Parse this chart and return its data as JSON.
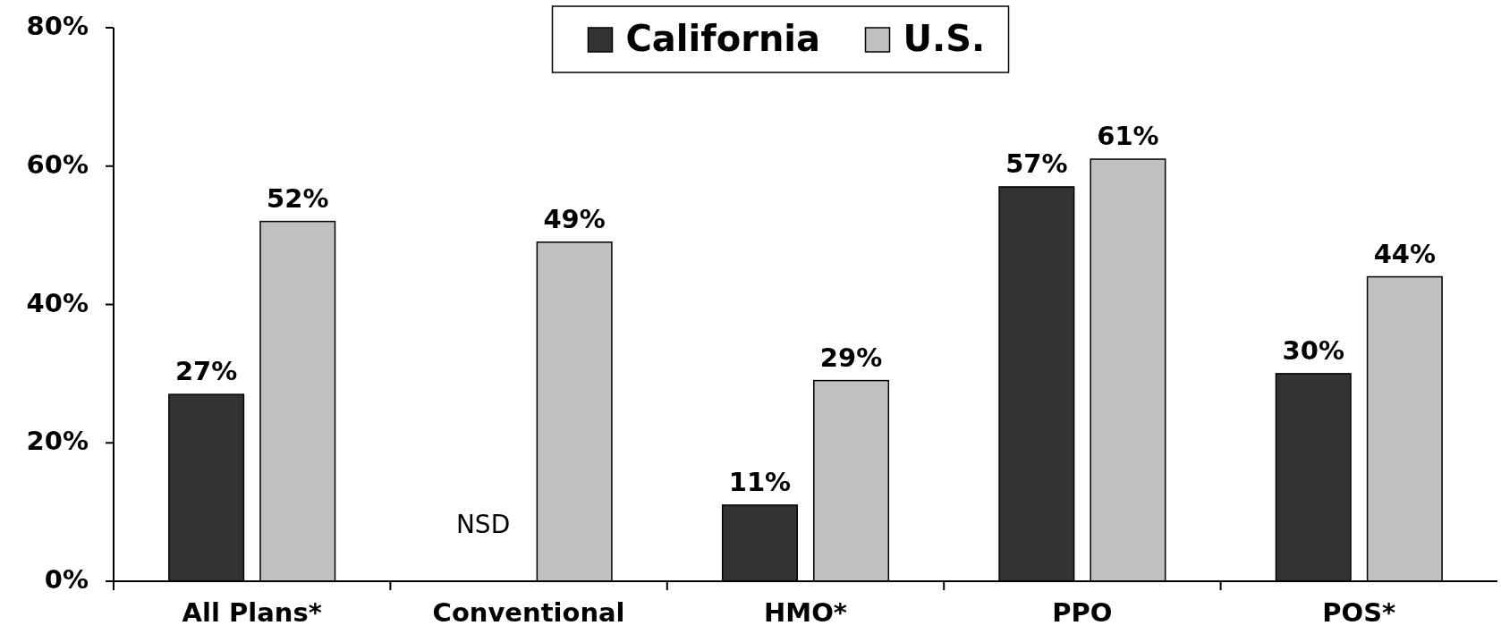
{
  "chart_data": {
    "type": "bar",
    "categories": [
      "All Plans*",
      "Conventional",
      "HMO*",
      "PPO",
      "POS*"
    ],
    "series": [
      {
        "name": "California",
        "color": "#333333",
        "values": [
          27,
          null,
          11,
          57,
          30
        ]
      },
      {
        "name": "U.S.",
        "color": "#c0c0c0",
        "values": [
          52,
          49,
          29,
          61,
          44
        ]
      }
    ],
    "ylim": [
      0,
      80
    ],
    "yticks": [
      {
        "value": 0,
        "label": "0%"
      },
      {
        "value": 20,
        "label": "20%"
      },
      {
        "value": 40,
        "label": "40%"
      },
      {
        "value": 60,
        "label": "60%"
      },
      {
        "value": 80,
        "label": "80%"
      }
    ],
    "value_labels": [
      [
        "27%",
        null,
        "11%",
        "57%",
        "30%"
      ],
      [
        "52%",
        "49%",
        "29%",
        "61%",
        "44%"
      ]
    ],
    "annotations": [
      "NSD"
    ],
    "legend": "top",
    "grid": false
  }
}
